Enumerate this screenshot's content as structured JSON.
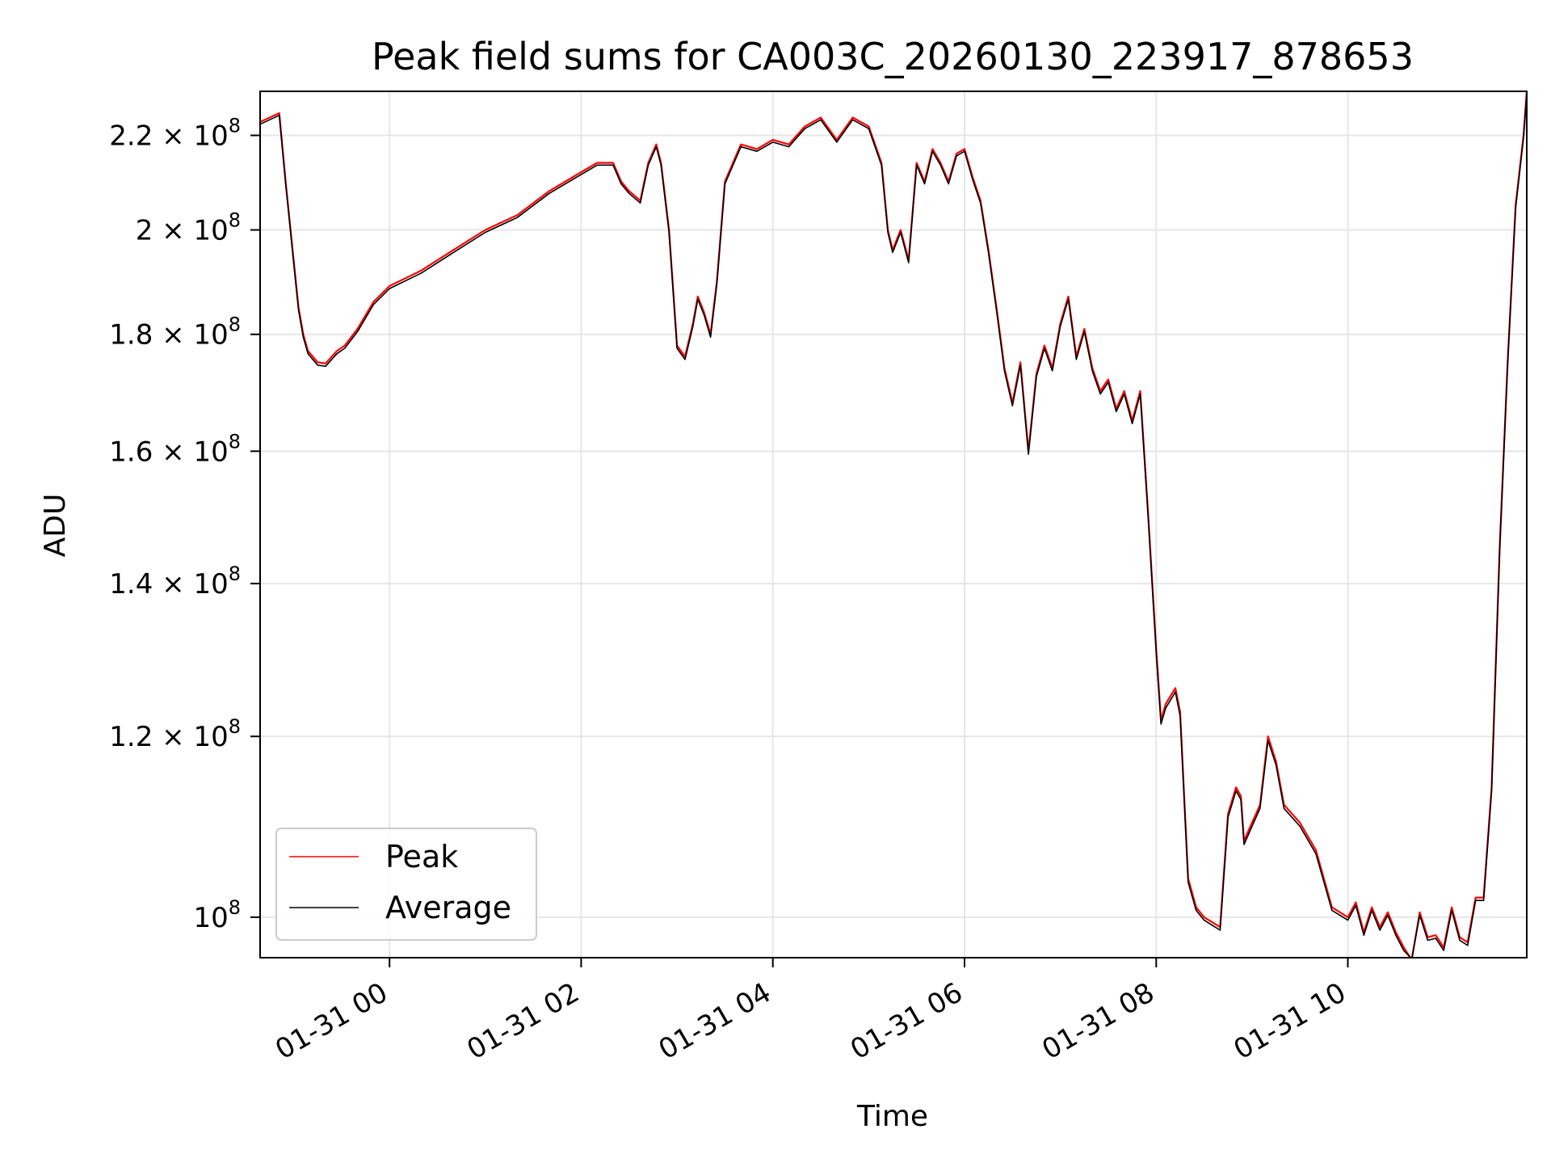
{
  "chart_data": {
    "type": "line",
    "title": "Peak field sums for CA003C_20260130_223917_878653",
    "xlabel": "Time",
    "ylabel": "ADU",
    "y_scale": "log",
    "grid": true,
    "legend_position": "lower-left",
    "x_range": [
      "2026-01-30 22:39",
      "2026-01-31 11:52"
    ],
    "ylim": [
      96000000,
      230000000
    ],
    "x_ticks": [
      "01-31 00",
      "01-31 02",
      "01-31 04",
      "01-31 06",
      "01-31 08",
      "01-31 10"
    ],
    "x_tick_times": [
      "2026-01-31 00:00",
      "2026-01-31 02:00",
      "2026-01-31 04:00",
      "2026-01-31 06:00",
      "2026-01-31 08:00",
      "2026-01-31 10:00"
    ],
    "y_ticks": [
      {
        "value": 100000000,
        "mantissa": "",
        "exp": "8"
      },
      {
        "value": 120000000,
        "mantissa": "1.2",
        "exp": "8"
      },
      {
        "value": 140000000,
        "mantissa": "1.4",
        "exp": "8"
      },
      {
        "value": 160000000,
        "mantissa": "1.6",
        "exp": "8"
      },
      {
        "value": 180000000,
        "mantissa": "1.8",
        "exp": "8"
      },
      {
        "value": 200000000,
        "mantissa": "2",
        "exp": "8"
      },
      {
        "value": 220000000,
        "mantissa": "2.2",
        "exp": "8"
      }
    ],
    "x": [
      "2026-01-30 22:39",
      "2026-01-30 22:51",
      "2026-01-30 22:55",
      "2026-01-30 23:00",
      "2026-01-30 23:03",
      "2026-01-30 23:06",
      "2026-01-30 23:09",
      "2026-01-30 23:15",
      "2026-01-30 23:20",
      "2026-01-30 23:27",
      "2026-01-30 23:32",
      "2026-01-30 23:40",
      "2026-01-30 23:50",
      "2026-01-31 00:00",
      "2026-01-31 00:20",
      "2026-01-31 00:40",
      "2026-01-31 01:00",
      "2026-01-31 01:20",
      "2026-01-31 01:40",
      "2026-01-31 02:00",
      "2026-01-31 02:10",
      "2026-01-31 02:20",
      "2026-01-31 02:25",
      "2026-01-31 02:30",
      "2026-01-31 02:37",
      "2026-01-31 02:42",
      "2026-01-31 02:47",
      "2026-01-31 02:50",
      "2026-01-31 02:55",
      "2026-01-31 03:00",
      "2026-01-31 03:05",
      "2026-01-31 03:10",
      "2026-01-31 03:13",
      "2026-01-31 03:17",
      "2026-01-31 03:21",
      "2026-01-31 03:25",
      "2026-01-31 03:30",
      "2026-01-31 03:40",
      "2026-01-31 03:50",
      "2026-01-31 04:00",
      "2026-01-31 04:10",
      "2026-01-31 04:20",
      "2026-01-31 04:30",
      "2026-01-31 04:40",
      "2026-01-31 04:50",
      "2026-01-31 05:00",
      "2026-01-31 05:08",
      "2026-01-31 05:12",
      "2026-01-31 05:15",
      "2026-01-31 05:20",
      "2026-01-31 05:25",
      "2026-01-31 05:30",
      "2026-01-31 05:35",
      "2026-01-31 05:40",
      "2026-01-31 05:45",
      "2026-01-31 05:50",
      "2026-01-31 05:55",
      "2026-01-31 06:00",
      "2026-01-31 06:05",
      "2026-01-31 06:10",
      "2026-01-31 06:15",
      "2026-01-31 06:20",
      "2026-01-31 06:25",
      "2026-01-31 06:30",
      "2026-01-31 06:35",
      "2026-01-31 06:40",
      "2026-01-31 06:45",
      "2026-01-31 06:50",
      "2026-01-31 06:55",
      "2026-01-31 07:00",
      "2026-01-31 07:05",
      "2026-01-31 07:10",
      "2026-01-31 07:15",
      "2026-01-31 07:20",
      "2026-01-31 07:25",
      "2026-01-31 07:30",
      "2026-01-31 07:35",
      "2026-01-31 07:40",
      "2026-01-31 07:45",
      "2026-01-31 07:50",
      "2026-01-31 07:55",
      "2026-01-31 08:00",
      "2026-01-31 08:03",
      "2026-01-31 08:06",
      "2026-01-31 08:09",
      "2026-01-31 08:12",
      "2026-01-31 08:15",
      "2026-01-31 08:20",
      "2026-01-31 08:25",
      "2026-01-31 08:30",
      "2026-01-31 08:35",
      "2026-01-31 08:40",
      "2026-01-31 08:45",
      "2026-01-31 08:50",
      "2026-01-31 08:53",
      "2026-01-31 08:55",
      "2026-01-31 09:00",
      "2026-01-31 09:05",
      "2026-01-31 09:10",
      "2026-01-31 09:15",
      "2026-01-31 09:20",
      "2026-01-31 09:30",
      "2026-01-31 09:40",
      "2026-01-31 09:50",
      "2026-01-31 10:00",
      "2026-01-31 10:05",
      "2026-01-31 10:10",
      "2026-01-31 10:15",
      "2026-01-31 10:20",
      "2026-01-31 10:25",
      "2026-01-31 10:30",
      "2026-01-31 10:35",
      "2026-01-31 10:40",
      "2026-01-31 10:45",
      "2026-01-31 10:50",
      "2026-01-31 10:55",
      "2026-01-31 11:00",
      "2026-01-31 11:05",
      "2026-01-31 11:10",
      "2026-01-31 11:15",
      "2026-01-31 11:20",
      "2026-01-31 11:25",
      "2026-01-31 11:30",
      "2026-01-31 11:35",
      "2026-01-31 11:40",
      "2026-01-31 11:45",
      "2026-01-31 11:50",
      "2026-01-31 11:52"
    ],
    "series": [
      {
        "name": "Peak",
        "color": "#ff0000",
        "values": [
          223000000,
          225000000,
          210000000,
          194000000,
          185000000,
          180000000,
          177000000,
          175000000,
          174800000,
          177000000,
          178000000,
          181000000,
          186000000,
          189000000,
          192000000,
          196000000,
          200000000,
          203000000,
          208000000,
          212000000,
          214000000,
          214000000,
          210000000,
          208000000,
          206000000,
          214000000,
          218000000,
          214000000,
          200000000,
          178000000,
          176000000,
          182000000,
          187000000,
          184000000,
          180000000,
          190000000,
          210000000,
          218000000,
          217000000,
          219000000,
          218000000,
          222000000,
          224000000,
          219000000,
          224000000,
          222000000,
          214000000,
          200000000,
          196000000,
          200000000,
          194000000,
          214000000,
          210000000,
          217000000,
          214000000,
          210000000,
          216000000,
          217000000,
          211000000,
          206000000,
          196000000,
          185000000,
          174000000,
          168000000,
          175000000,
          160000000,
          173000000,
          178000000,
          174000000,
          182000000,
          187000000,
          176000000,
          181000000,
          174000000,
          170000000,
          172000000,
          167000000,
          170000000,
          165000000,
          170000000,
          150000000,
          131000000,
          122000000,
          124000000,
          125000000,
          126000000,
          123000000,
          104000000,
          101000000,
          100000000,
          99500000,
          99000000,
          111000000,
          114000000,
          113000000,
          108000000,
          110000000,
          112000000,
          120000000,
          117000000,
          112000000,
          110000000,
          107000000,
          101000000,
          100000000,
          101500000,
          98500000,
          101000000,
          99000000,
          100500000,
          98500000,
          97000000,
          95800000,
          100500000,
          98000000,
          98200000,
          97000000,
          101000000,
          98000000,
          97500000,
          102000000,
          102000000,
          114000000,
          145000000,
          175000000,
          205000000,
          220000000,
          230000000
        ]
      },
      {
        "name": "Average",
        "color": "#000000",
        "values": [
          222500000,
          224500000,
          209500000,
          193500000,
          184500000,
          179500000,
          176500000,
          174500000,
          174300000,
          176500000,
          177500000,
          180500000,
          185500000,
          188500000,
          191500000,
          195500000,
          199500000,
          202500000,
          207500000,
          211500000,
          213500000,
          213500000,
          209500000,
          207500000,
          205500000,
          213500000,
          217500000,
          213500000,
          199500000,
          177500000,
          175500000,
          181500000,
          186500000,
          183500000,
          179500000,
          189500000,
          209500000,
          217500000,
          216500000,
          218500000,
          217500000,
          221500000,
          223500000,
          218500000,
          223500000,
          221500000,
          213500000,
          199500000,
          195500000,
          199500000,
          193500000,
          213500000,
          209500000,
          216500000,
          213500000,
          209500000,
          215500000,
          216500000,
          210500000,
          205500000,
          195500000,
          184500000,
          173500000,
          167500000,
          174500000,
          159500000,
          172500000,
          177500000,
          173500000,
          181500000,
          186500000,
          175500000,
          180500000,
          173500000,
          169500000,
          171500000,
          166500000,
          169500000,
          164500000,
          169500000,
          149500000,
          130500000,
          121500000,
          123500000,
          124500000,
          125500000,
          122500000,
          103600000,
          100700000,
          99700000,
          99200000,
          98700000,
          110600000,
          113600000,
          112600000,
          107600000,
          109600000,
          111600000,
          119500000,
          116600000,
          111600000,
          109600000,
          106600000,
          100700000,
          99700000,
          101200000,
          98200000,
          100700000,
          98700000,
          100200000,
          98200000,
          96700000,
          95900000,
          100200000,
          97700000,
          97900000,
          96700000,
          100700000,
          97700000,
          97200000,
          101700000,
          101700000,
          113600000,
          144500000,
          174500000,
          204500000,
          219500000,
          229500000
        ]
      }
    ]
  }
}
